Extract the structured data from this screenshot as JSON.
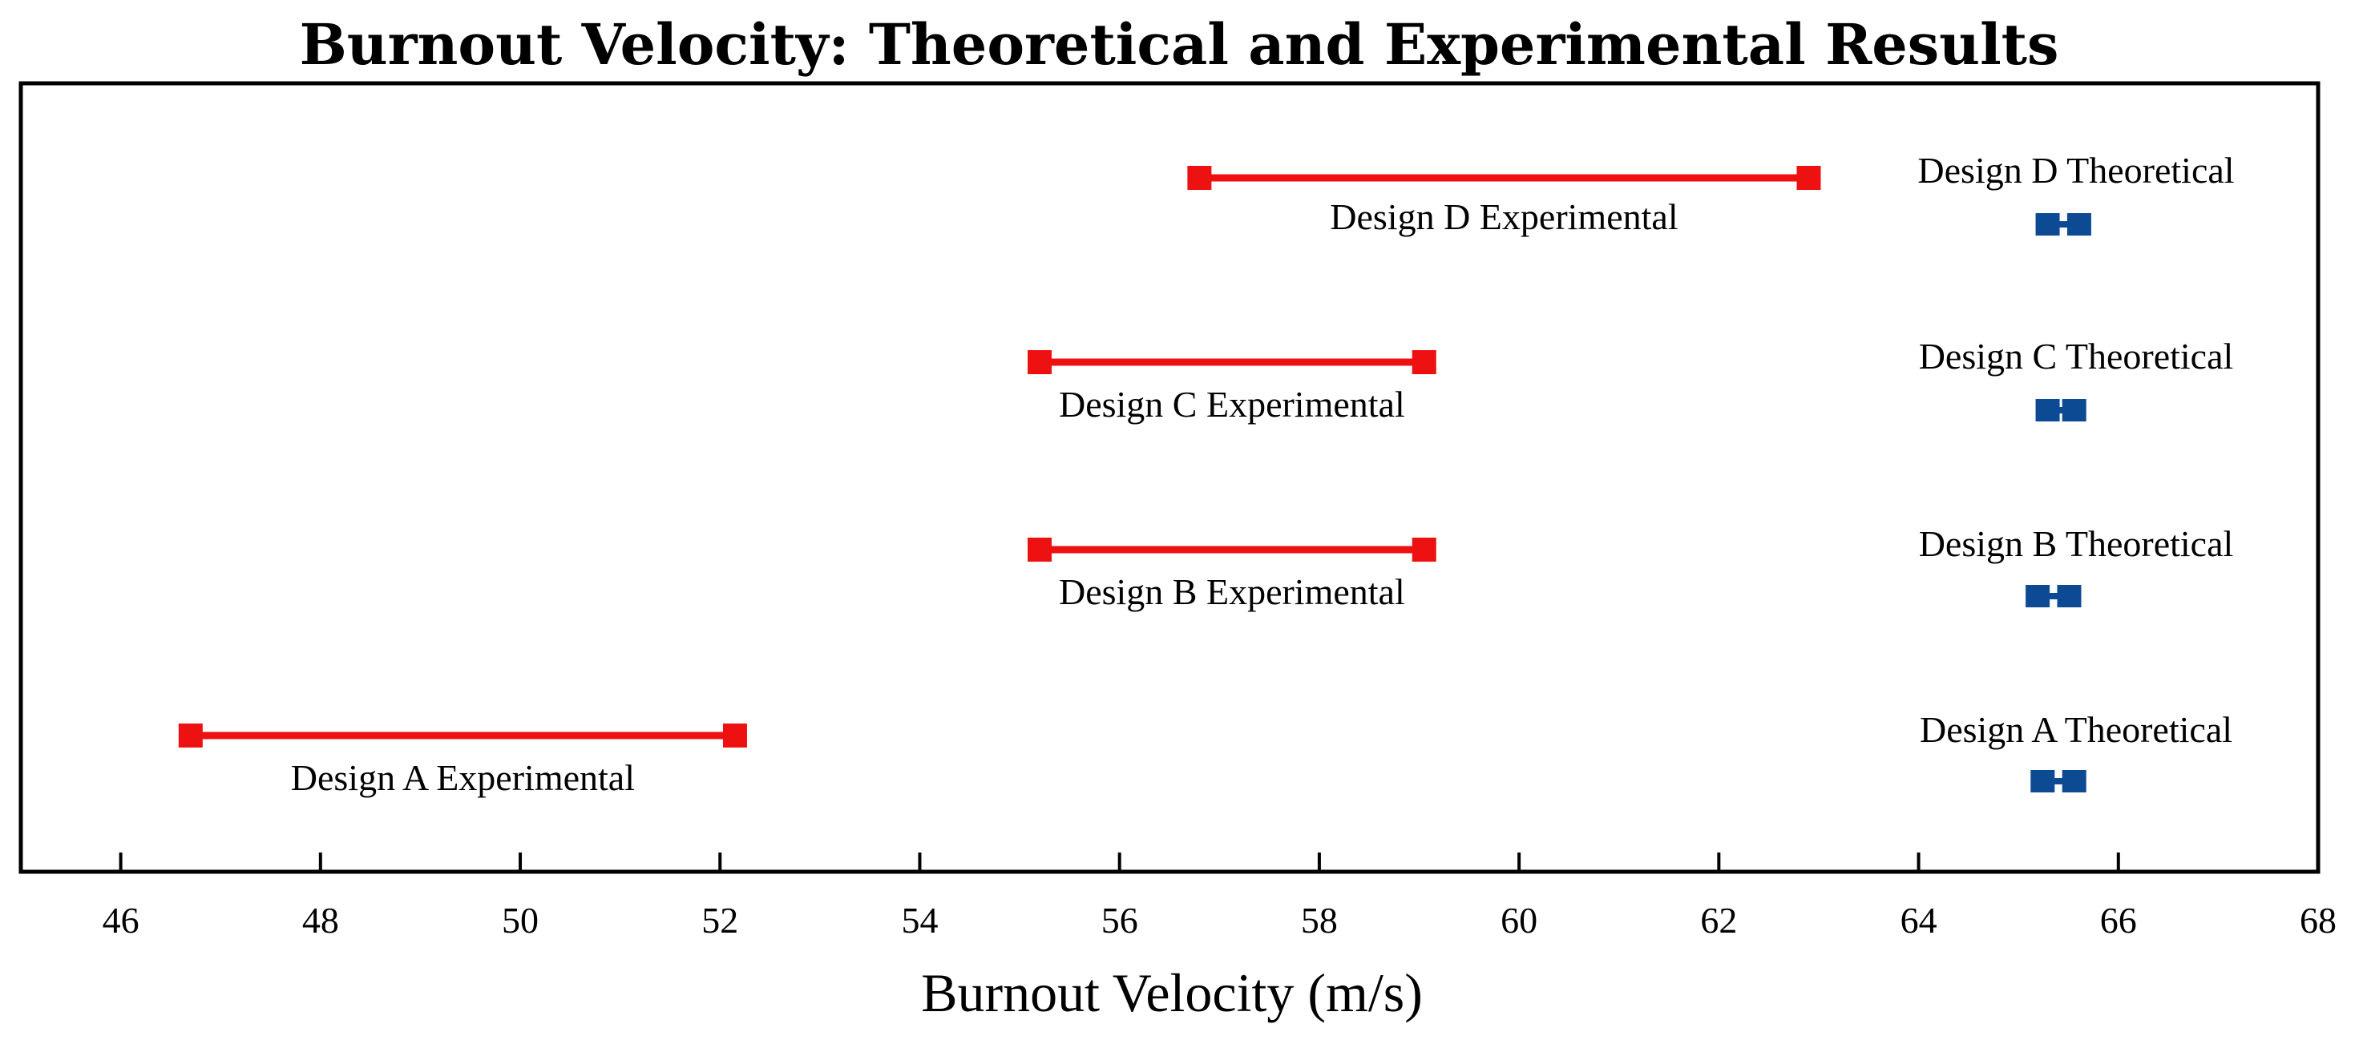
{
  "chart_data": {
    "type": "range",
    "title": "Burnout Velocity: Theoretical and Experimental Results",
    "xlabel": "Burnout Velocity (m/s)",
    "ylabel": "",
    "xlim": [
      45,
      68
    ],
    "xticks": [
      46,
      48,
      50,
      52,
      54,
      56,
      58,
      60,
      62,
      64,
      66,
      68
    ],
    "grid": false,
    "colors": {
      "experimental": "#ee1111",
      "theoretical": "#0d4a94"
    },
    "experimental": [
      {
        "name": "Design A Experimental",
        "min": 46.7,
        "max": 52.15
      },
      {
        "name": "Design B Experimental",
        "min": 55.2,
        "max": 59.05
      },
      {
        "name": "Design C Experimental",
        "min": 55.2,
        "max": 59.05
      },
      {
        "name": "Design D Experimental",
        "min": 56.8,
        "max": 62.9
      }
    ],
    "theoretical": [
      {
        "name": "Design A Theoretical",
        "min": 65.25,
        "max": 65.55
      },
      {
        "name": "Design B Theoretical",
        "min": 65.2,
        "max": 65.5
      },
      {
        "name": "Design C Theoretical",
        "min": 65.3,
        "max": 65.55
      },
      {
        "name": "Design D Theoretical",
        "min": 65.3,
        "max": 65.6
      }
    ]
  }
}
